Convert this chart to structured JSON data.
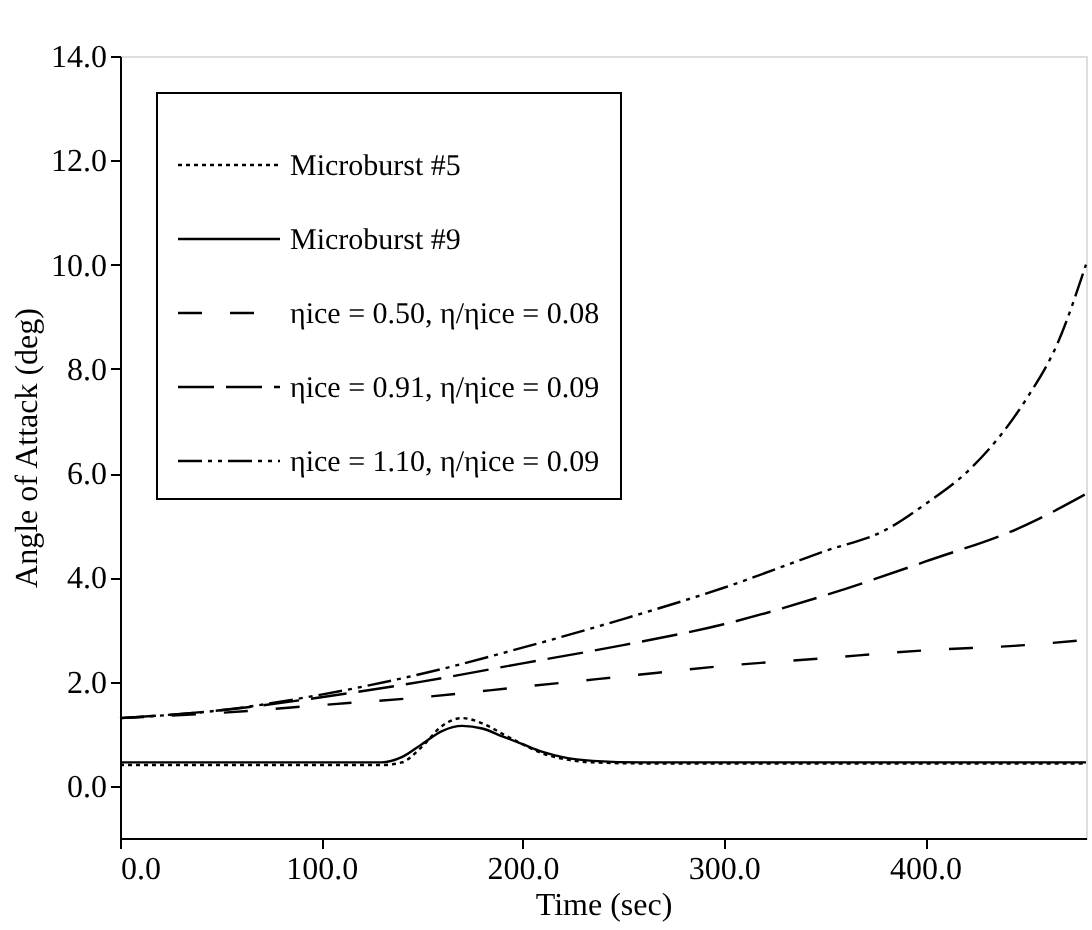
{
  "chart_data": {
    "type": "line",
    "xlabel": "Time (sec)",
    "ylabel": "Angle of Attack (deg)",
    "xlim": [
      0,
      480
    ],
    "ylim": [
      -1,
      14
    ],
    "xticks": [
      {
        "value": 0,
        "label": "0.0"
      },
      {
        "value": 100,
        "label": "100.0"
      },
      {
        "value": 200,
        "label": "200.0"
      },
      {
        "value": 300,
        "label": "300.0"
      },
      {
        "value": 400,
        "label": "400.0"
      }
    ],
    "yticks": [
      {
        "value": 0,
        "label": "0.0"
      },
      {
        "value": 2,
        "label": "2.0"
      },
      {
        "value": 4,
        "label": "4.0"
      },
      {
        "value": 6,
        "label": "6.0"
      },
      {
        "value": 8,
        "label": "8.0"
      },
      {
        "value": 10,
        "label": "10.0"
      },
      {
        "value": 12,
        "label": "12.0"
      },
      {
        "value": 14,
        "label": "14.0"
      }
    ],
    "grid": false,
    "legend": "top left",
    "marker": "none",
    "series": [
      {
        "name": "Microburst #5",
        "color": "#000000",
        "line_style": "dotted",
        "x": [
          0,
          100,
          130,
          140,
          150,
          160,
          170,
          180,
          190,
          200,
          210,
          220,
          235,
          260,
          300,
          400,
          480
        ],
        "values": [
          0.4,
          0.4,
          0.4,
          0.45,
          0.75,
          1.15,
          1.3,
          1.2,
          1.0,
          0.8,
          0.62,
          0.52,
          0.45,
          0.43,
          0.43,
          0.43,
          0.43
        ]
      },
      {
        "name": "Microburst #9",
        "color": "#000000",
        "line_style": "solid",
        "x": [
          0,
          100,
          130,
          140,
          150,
          160,
          170,
          180,
          190,
          200,
          210,
          220,
          235,
          260,
          300,
          400,
          480
        ],
        "values": [
          0.45,
          0.45,
          0.45,
          0.55,
          0.8,
          1.05,
          1.15,
          1.1,
          0.95,
          0.8,
          0.65,
          0.55,
          0.48,
          0.45,
          0.45,
          0.45,
          0.45
        ]
      },
      {
        "name": "ηice = 0.50, η/ηice = 0.08",
        "color": "#000000",
        "line_style": "dashed",
        "x": [
          0,
          50,
          100,
          150,
          200,
          250,
          300,
          350,
          400,
          450,
          480
        ],
        "values": [
          1.3,
          1.4,
          1.55,
          1.7,
          1.9,
          2.1,
          2.3,
          2.45,
          2.6,
          2.7,
          2.8
        ]
      },
      {
        "name": "ηice = 0.91, η/ηice = 0.09",
        "color": "#000000",
        "line_style": "longdash",
        "x": [
          0,
          50,
          100,
          150,
          200,
          250,
          300,
          350,
          400,
          450,
          480
        ],
        "values": [
          1.3,
          1.45,
          1.7,
          2.0,
          2.35,
          2.7,
          3.1,
          3.65,
          4.3,
          5.0,
          5.6
        ]
      },
      {
        "name": "ηice = 1.10, η/ηice = 0.09",
        "color": "#000000",
        "line_style": "dashdot",
        "x": [
          0,
          50,
          100,
          150,
          200,
          250,
          300,
          350,
          380,
          400,
          423,
          450,
          466,
          480
        ],
        "values": [
          1.3,
          1.45,
          1.75,
          2.15,
          2.65,
          3.2,
          3.8,
          4.5,
          4.9,
          5.4,
          6.1,
          7.4,
          8.5,
          10.0
        ]
      }
    ]
  }
}
